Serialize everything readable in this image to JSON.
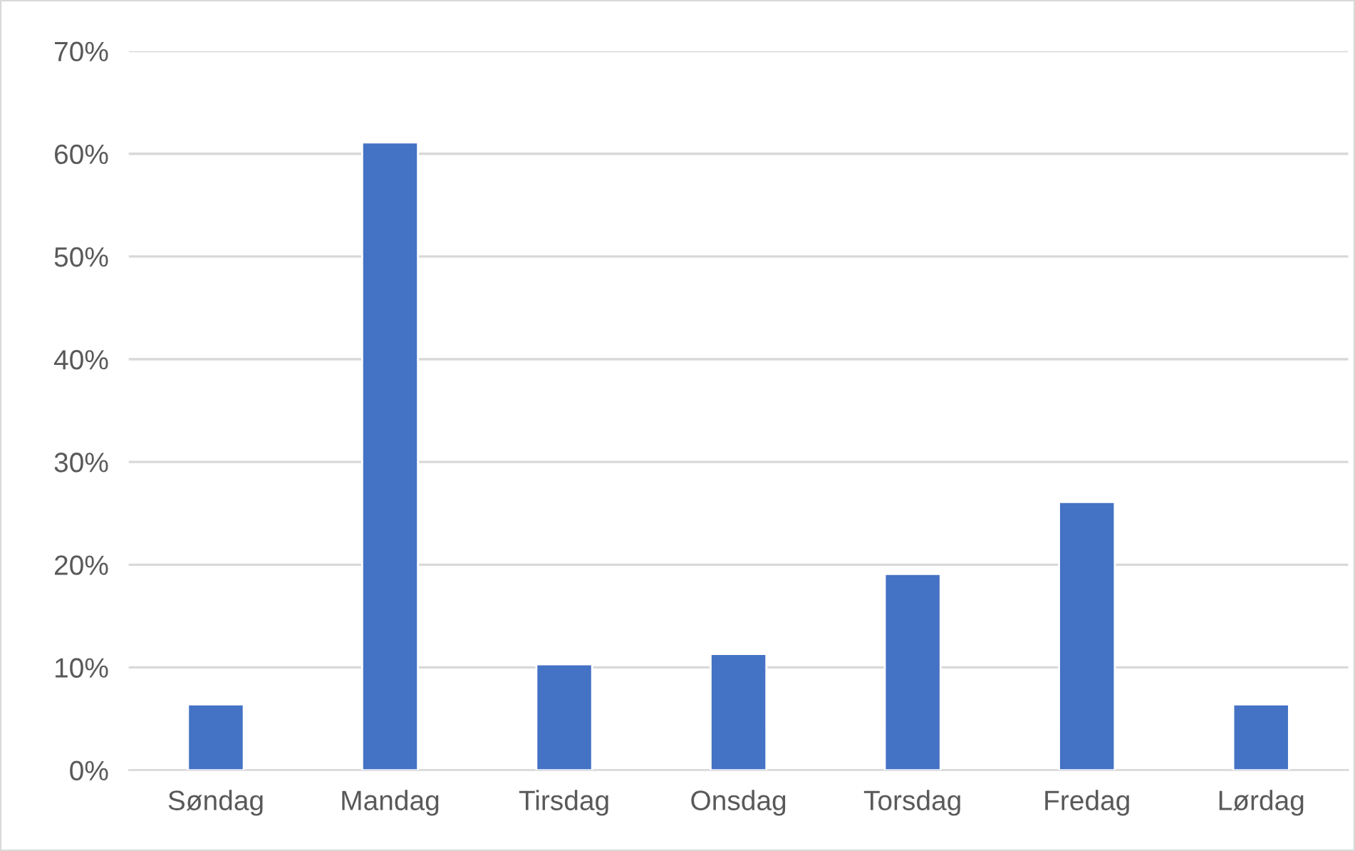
{
  "chart_data": {
    "type": "bar",
    "categories": [
      "Søndag",
      "Mandag",
      "Tirsdag",
      "Onsdag",
      "Torsdag",
      "Fredag",
      "Lørdag"
    ],
    "values": [
      6.4,
      61.1,
      10.3,
      11.3,
      19.1,
      26.1,
      6.4
    ],
    "color": "#4472c4",
    "ylim": [
      0,
      70
    ],
    "yticks": [
      {
        "value": 0,
        "label": "0%"
      },
      {
        "value": 10,
        "label": "10%"
      },
      {
        "value": 20,
        "label": "20%"
      },
      {
        "value": 30,
        "label": "30%"
      },
      {
        "value": 40,
        "label": "40%"
      },
      {
        "value": 50,
        "label": "50%"
      },
      {
        "value": 60,
        "label": "60%"
      },
      {
        "value": 70,
        "label": "70%"
      }
    ],
    "grid": "y"
  }
}
